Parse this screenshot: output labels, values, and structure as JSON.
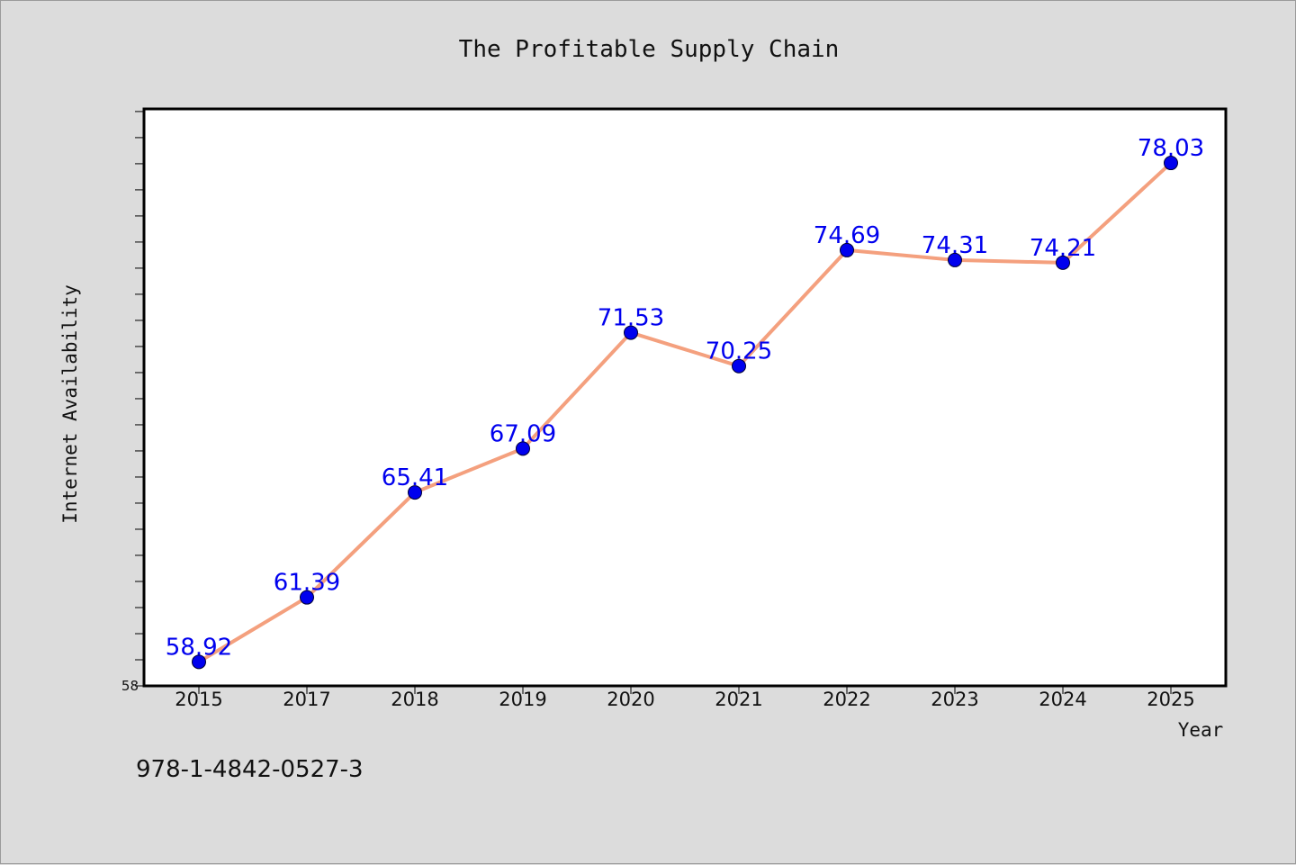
{
  "chart_data": {
    "type": "line",
    "title": "The Profitable Supply Chain",
    "xlabel": "Year",
    "ylabel": "Internet Availability",
    "categories": [
      "2015",
      "2017",
      "2018",
      "2019",
      "2020",
      "2021",
      "2022",
      "2023",
      "2024",
      "2025"
    ],
    "series": [
      {
        "values": [
          58.92,
          61.39,
          65.41,
          67.09,
          71.53,
          70.25,
          74.69,
          74.31,
          74.21,
          78.03
        ],
        "data_labels": [
          "58.92",
          "61.39",
          "65.41",
          "67.09",
          "71.53",
          "70.25",
          "74.69",
          "74.31",
          "74.21",
          "78.03"
        ],
        "line_color": "#f4a07e",
        "marker_color": "#0000ee",
        "label_color": "#0000ee"
      }
    ],
    "ylim": [
      58,
      80.1
    ],
    "y_tick_labels": [
      "58"
    ],
    "grid": false,
    "legend": "none"
  },
  "footer": {
    "isbn": "978-1-4842-0527-3"
  },
  "colors": {
    "background": "#dcdcdc",
    "plot_background": "#ffffff"
  }
}
